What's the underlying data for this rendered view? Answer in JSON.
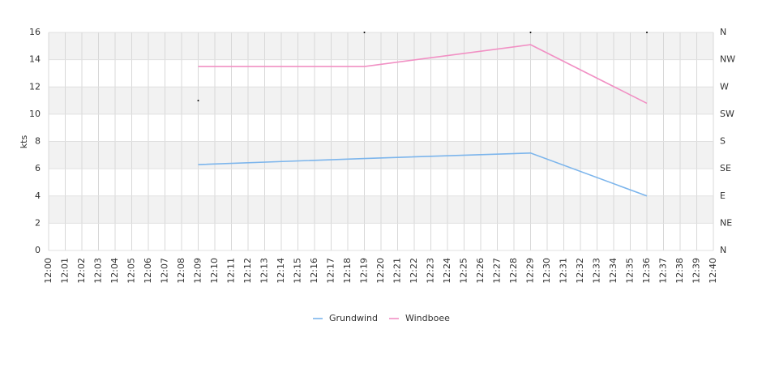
{
  "chart_data": {
    "type": "line",
    "y_label": "kts",
    "categories": [
      "12:00",
      "12:01",
      "12:02",
      "12:03",
      "12:04",
      "12:05",
      "12:06",
      "12:07",
      "12:08",
      "12:09",
      "12:10",
      "12:11",
      "12:12",
      "12:13",
      "12:14",
      "12:15",
      "12:16",
      "12:17",
      "12:18",
      "12:19",
      "12:20",
      "12:21",
      "12:22",
      "12:23",
      "12:24",
      "12:25",
      "12:26",
      "12:27",
      "12:28",
      "12:29",
      "12:30",
      "12:31",
      "12:32",
      "12:33",
      "12:34",
      "12:35",
      "12:36",
      "12:37",
      "12:38",
      "12:39",
      "12:40"
    ],
    "ylim": [
      0,
      16
    ],
    "yticks": [
      0,
      2,
      4,
      6,
      8,
      10,
      12,
      14,
      16
    ],
    "y2lim": [
      0,
      360
    ],
    "y2ticks": [
      {
        "value": 0,
        "label": "N"
      },
      {
        "value": 45,
        "label": "NE"
      },
      {
        "value": 90,
        "label": "E"
      },
      {
        "value": 135,
        "label": "SE"
      },
      {
        "value": 180,
        "label": "S"
      },
      {
        "value": 225,
        "label": "SW"
      },
      {
        "value": 270,
        "label": "W"
      },
      {
        "value": 315,
        "label": "NW"
      },
      {
        "value": 360,
        "label": "N"
      }
    ],
    "grid": true,
    "series": [
      {
        "name": "Grundwind",
        "color": "#7cb5ec",
        "x": [
          "12:09",
          "12:19",
          "12:29",
          "12:36"
        ],
        "values": [
          6.3,
          6.75,
          7.15,
          4.0
        ]
      },
      {
        "name": "Windboee",
        "color": "#f190c4",
        "x": [
          "12:09",
          "12:19",
          "12:29",
          "12:36"
        ],
        "values": [
          13.5,
          13.5,
          15.1,
          10.8
        ]
      },
      {
        "color": "#000000",
        "axis": "y2",
        "x": [
          "12:09",
          "12:19",
          "12:29",
          "12:36"
        ],
        "values": [
          247.5,
          360,
          360,
          360
        ]
      }
    ]
  }
}
